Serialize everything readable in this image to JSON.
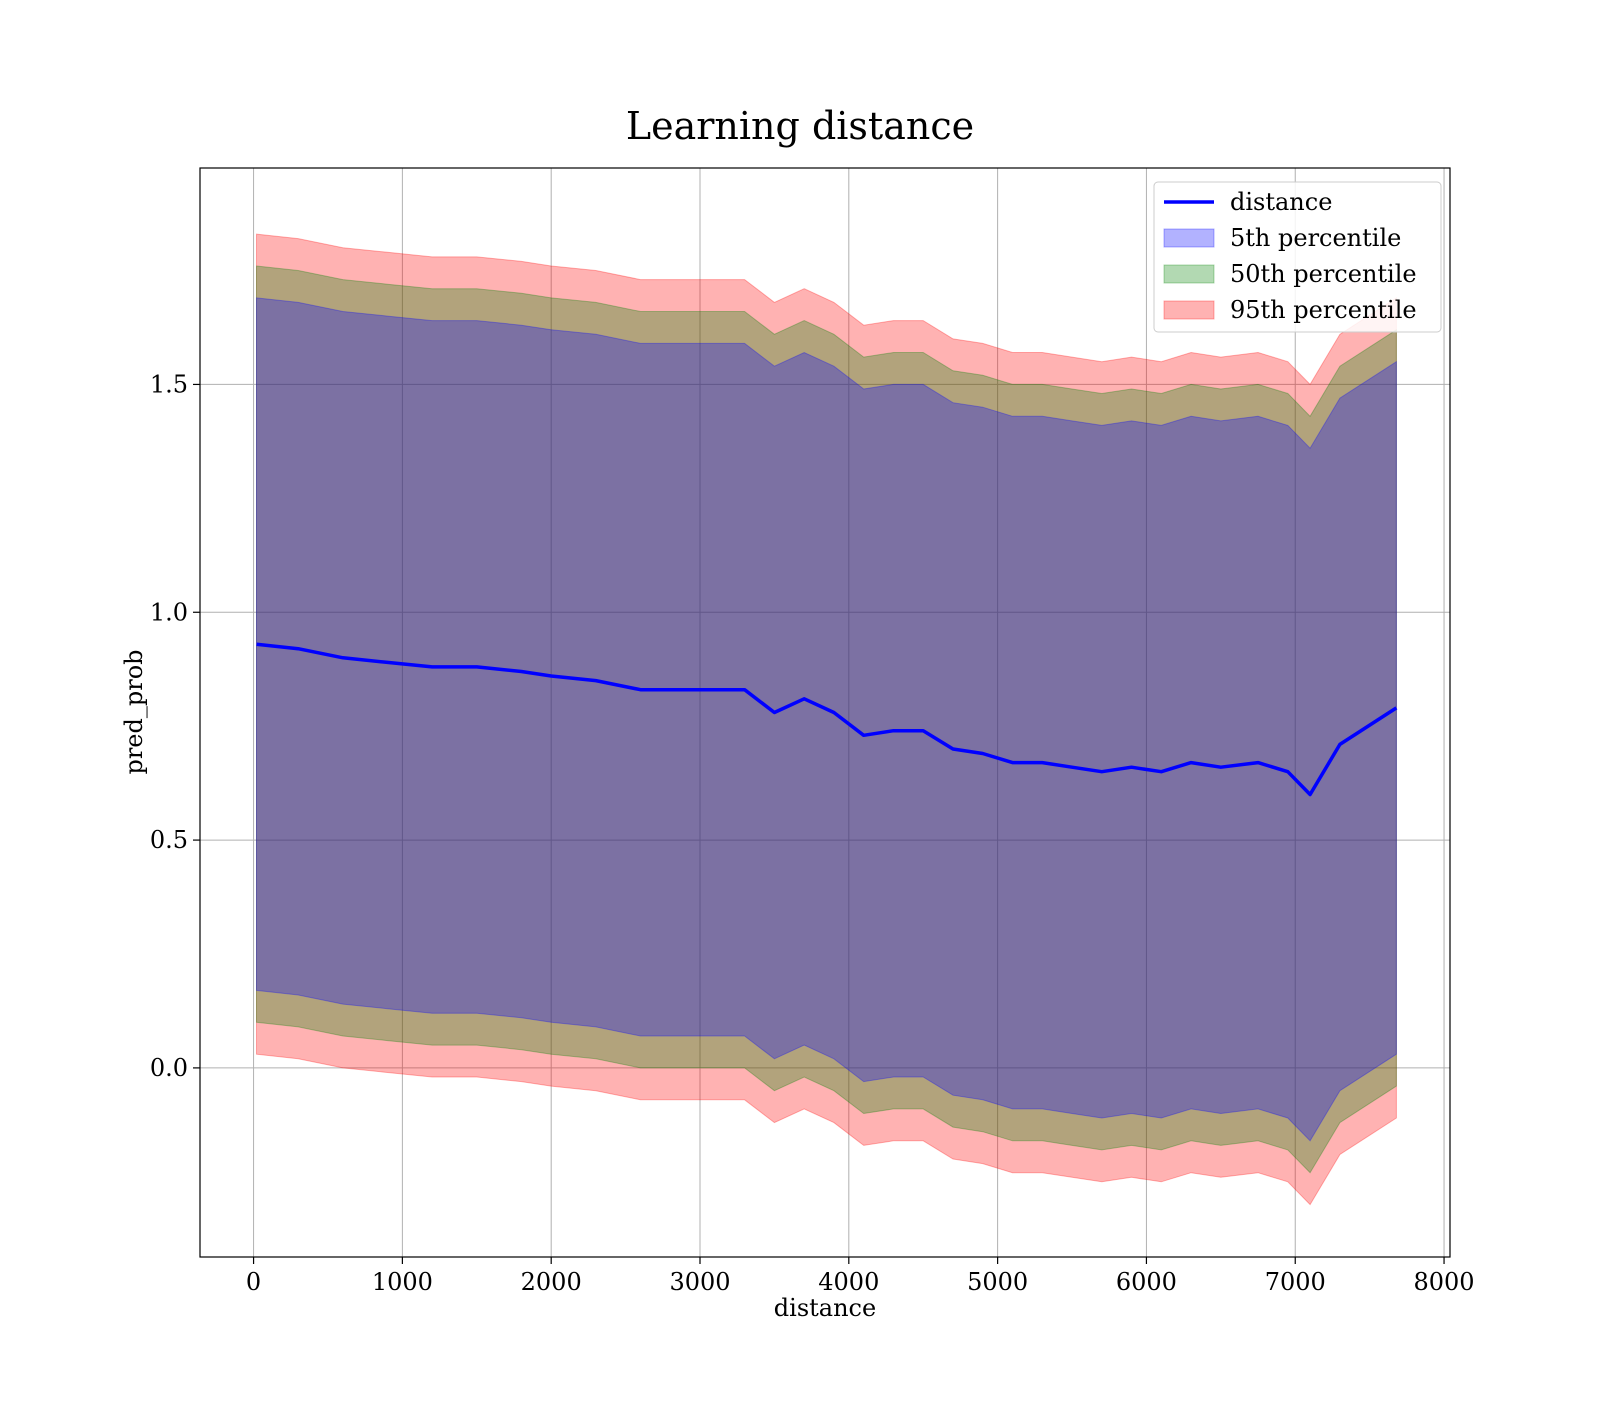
{
  "chart_data": {
    "type": "area",
    "title": "Learning distance",
    "xlabel": "distance",
    "ylabel": "pred_prob",
    "xlim": [
      -360,
      8040
    ],
    "ylim": [
      -0.415,
      1.975
    ],
    "xticks": [
      0,
      1000,
      2000,
      3000,
      4000,
      5000,
      6000,
      7000,
      8000
    ],
    "xtick_labels": [
      "0",
      "1000",
      "2000",
      "3000",
      "4000",
      "5000",
      "6000",
      "7000",
      "8000"
    ],
    "yticks": [
      0.0,
      0.5,
      1.0,
      1.5
    ],
    "ytick_labels": [
      "0.0",
      "0.5",
      "1.0",
      "1.5"
    ],
    "grid": true,
    "legend_position": "top-right",
    "x": [
      20,
      300,
      600,
      900,
      1200,
      1500,
      1800,
      2000,
      2300,
      2600,
      2800,
      3000,
      3300,
      3500,
      3700,
      3900,
      4100,
      4300,
      4500,
      4700,
      4900,
      5100,
      5300,
      5500,
      5700,
      5900,
      6100,
      6300,
      6500,
      6750,
      6950,
      7100,
      7300,
      7680
    ],
    "series": [
      {
        "name": "distance",
        "kind": "line",
        "color": "#0000ff",
        "values": [
          0.93,
          0.92,
          0.9,
          0.89,
          0.88,
          0.88,
          0.87,
          0.86,
          0.85,
          0.83,
          0.83,
          0.83,
          0.83,
          0.78,
          0.81,
          0.78,
          0.73,
          0.74,
          0.74,
          0.7,
          0.69,
          0.67,
          0.67,
          0.66,
          0.65,
          0.66,
          0.65,
          0.67,
          0.66,
          0.67,
          0.65,
          0.6,
          0.71,
          0.79
        ]
      },
      {
        "name": "5th percentile",
        "kind": "band",
        "color": "#0000ff",
        "offset": 0.76
      },
      {
        "name": "50th percentile",
        "kind": "band",
        "color": "#008000",
        "offset": 0.83
      },
      {
        "name": "95th percentile",
        "kind": "band",
        "color": "#ff0000",
        "offset": 0.9
      }
    ]
  }
}
